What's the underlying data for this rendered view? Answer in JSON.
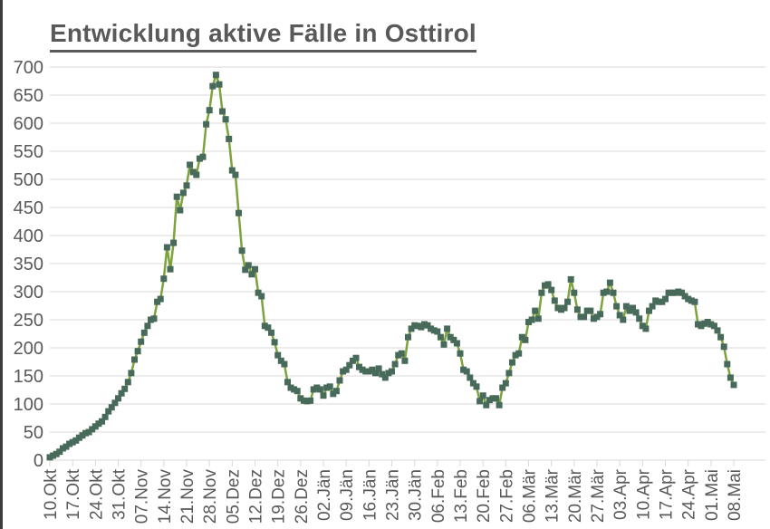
{
  "chart_data": {
    "type": "line",
    "title": "Entwicklung aktive Fälle in Osttirol",
    "xlabel": "",
    "ylabel": "",
    "ylim": [
      0,
      700
    ],
    "y_step": 50,
    "grid": true,
    "legend": "none",
    "y_tick_labels": [
      "0",
      "50",
      "100",
      "150",
      "200",
      "250",
      "300",
      "350",
      "400",
      "450",
      "500",
      "550",
      "600",
      "650",
      "700"
    ],
    "x_tick_labels": [
      "10.Okt",
      "17.Okt",
      "24.Okt",
      "31.Okt",
      "07.Nov",
      "14.Nov",
      "21.Nov",
      "28.Nov",
      "05.Dez",
      "12.Dez",
      "19.Dez",
      "26.Dez",
      "02.Jän",
      "09.Jän",
      "16.Jän",
      "23.Jän",
      "30.Jän",
      "06.Feb",
      "13.Feb",
      "20.Feb",
      "27.Feb",
      "06.Mär",
      "13.Mär",
      "20.Mär",
      "27.Mär",
      "03.Apr",
      "10.Apr",
      "17.Apr",
      "24.Apr",
      "01.Mai",
      "08.Mai"
    ],
    "values": [
      5,
      8,
      11,
      15,
      21,
      24,
      29,
      32,
      35,
      40,
      44,
      48,
      50,
      55,
      60,
      65,
      69,
      77,
      87,
      94,
      102,
      110,
      119,
      127,
      139,
      155,
      179,
      194,
      211,
      227,
      239,
      250,
      252,
      282,
      287,
      323,
      379,
      340,
      387,
      469,
      445,
      476,
      489,
      526,
      513,
      508,
      537,
      540,
      598,
      623,
      666,
      686,
      669,
      621,
      607,
      572,
      516,
      508,
      440,
      373,
      339,
      347,
      331,
      340,
      298,
      292,
      239,
      236,
      227,
      210,
      187,
      177,
      171,
      139,
      129,
      126,
      123,
      110,
      106,
      105,
      106,
      126,
      129,
      126,
      115,
      129,
      131,
      118,
      123,
      142,
      158,
      161,
      169,
      177,
      182,
      166,
      161,
      158,
      158,
      161,
      155,
      163,
      153,
      147,
      155,
      158,
      171,
      187,
      190,
      177,
      219,
      234,
      240,
      239,
      237,
      242,
      240,
      234,
      231,
      229,
      219,
      206,
      234,
      219,
      214,
      208,
      190,
      161,
      158,
      147,
      137,
      131,
      105,
      115,
      98,
      107,
      110,
      110,
      98,
      129,
      137,
      155,
      174,
      187,
      190,
      219,
      214,
      246,
      250,
      266,
      252,
      298,
      311,
      313,
      303,
      284,
      271,
      268,
      271,
      282,
      322,
      298,
      268,
      255,
      255,
      266,
      266,
      252,
      255,
      260,
      298,
      300,
      316,
      298,
      274,
      258,
      250,
      274,
      266,
      271,
      263,
      252,
      239,
      234,
      266,
      274,
      284,
      282,
      282,
      287,
      298,
      298,
      298,
      300,
      298,
      292,
      287,
      284,
      282,
      242,
      239,
      243,
      246,
      242,
      239,
      231,
      219,
      202,
      171,
      147,
      134
    ],
    "colors": {
      "line": "#7da33c",
      "marker": "#486a5a",
      "grid": "#d9d9d9",
      "axis_tick": "#d9d9d9",
      "axis_text": "#595959",
      "title_text": "#595959",
      "left_border": "#3d3d3d"
    }
  }
}
